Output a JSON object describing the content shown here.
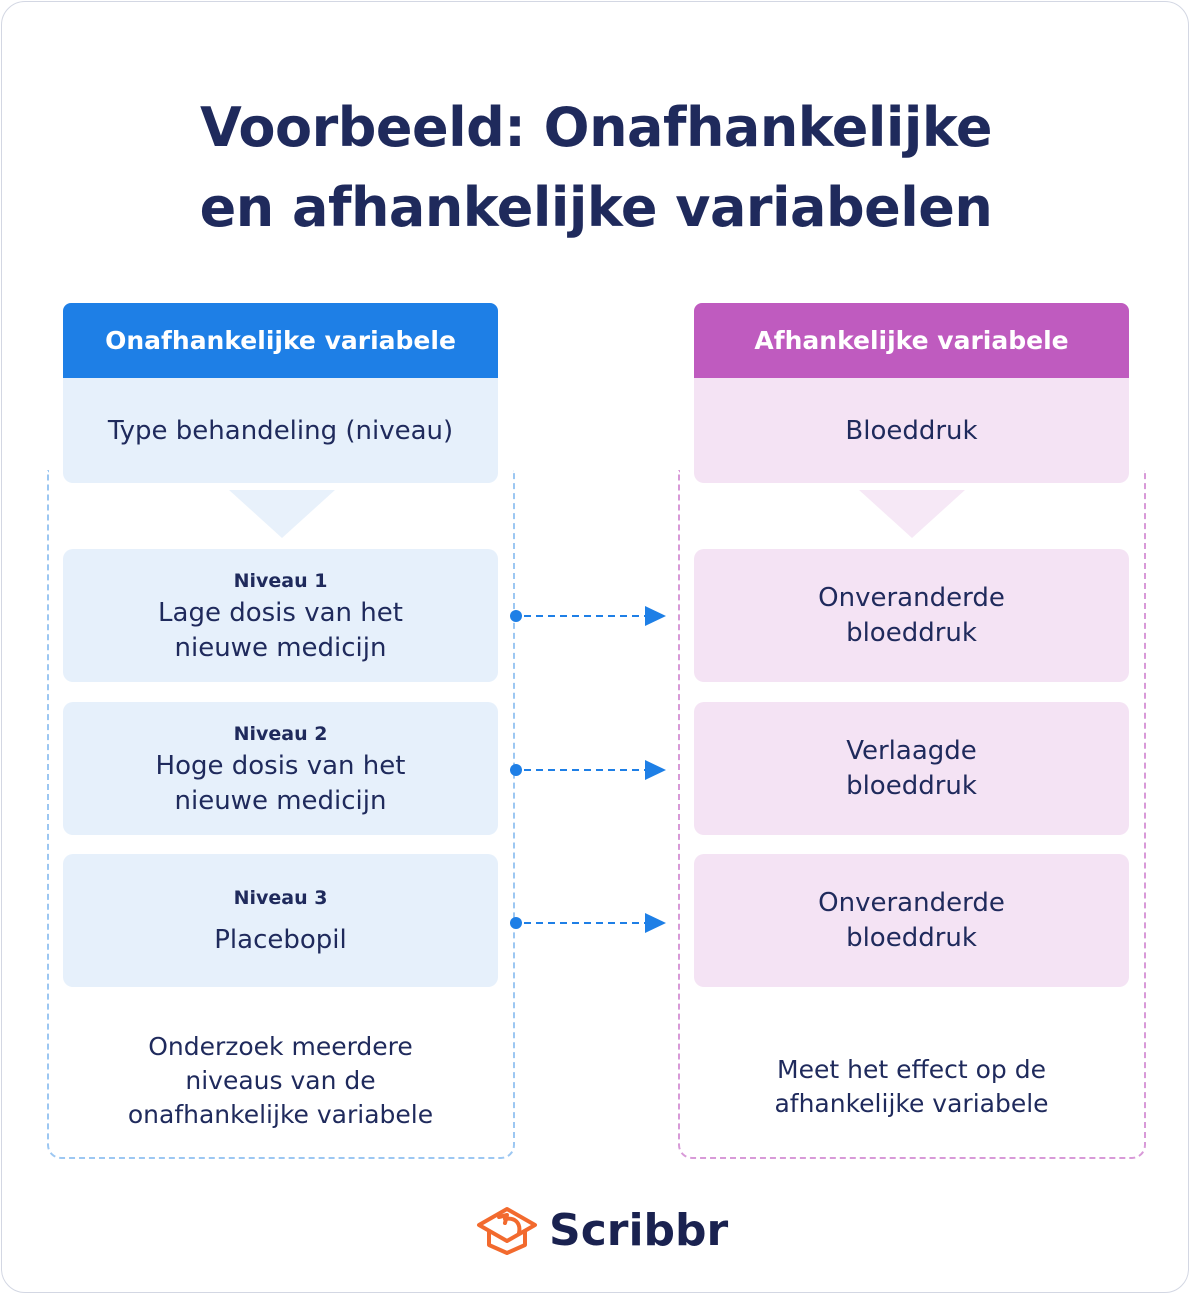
{
  "title_lines": [
    "Voorbeeld: Onafhankelijke",
    "en afhankelijke variabelen"
  ],
  "colors": {
    "blue": "#1e7fe6",
    "light_blue": "#e6f0fb",
    "purple": "#bf5bbf",
    "light_purple": "#f4e3f4",
    "text": "#1f2a5c",
    "logo_orange": "#f26a2e"
  },
  "left": {
    "header": "Onafhankelijke variabele",
    "subtitle": "Type behandeling (niveau)",
    "levels": [
      {
        "label": "Niveau 1",
        "line1": "Lage dosis van het",
        "line2": "nieuwe medicijn"
      },
      {
        "label": "Niveau 2",
        "line1": "Hoge dosis van het",
        "line2": "nieuwe medicijn"
      },
      {
        "label": "Niveau 3",
        "line1": "Placebopil",
        "line2": ""
      }
    ],
    "footer": [
      "Onderzoek meerdere",
      "niveaus van de",
      "onafhankelijke variabele"
    ]
  },
  "right": {
    "header": "Afhankelijke variabele",
    "subtitle": "Bloeddruk",
    "outcomes": [
      {
        "line1": "Onveranderde",
        "line2": "bloeddruk"
      },
      {
        "line1": "Verlaagde",
        "line2": "bloeddruk"
      },
      {
        "line1": "Onveranderde",
        "line2": "bloeddruk"
      }
    ],
    "footer": [
      "Meet het effect op de",
      "afhankelijke variabele"
    ]
  },
  "logo": {
    "text": "Scribbr"
  }
}
